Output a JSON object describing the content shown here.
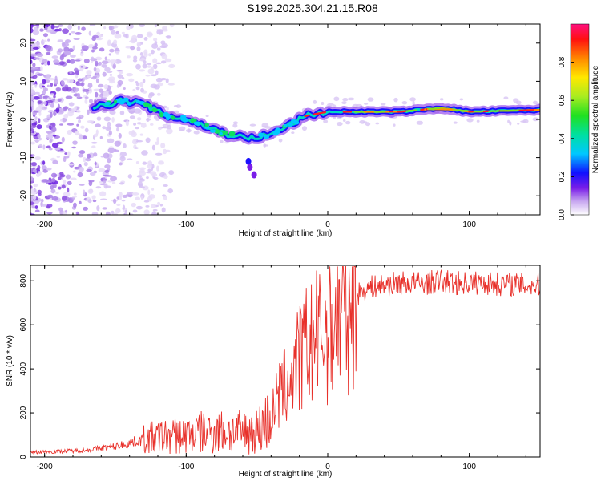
{
  "title": "S199.2025.304.21.15.R08",
  "chart_data": [
    {
      "type": "heatmap",
      "xlabel": "Height of straight line (km)",
      "ylabel": "Frequency (Hz)",
      "xlim": [
        -210,
        150
      ],
      "ylim": [
        -25,
        25
      ],
      "xticks": [
        -200,
        -100,
        0,
        100
      ],
      "yticks": [
        -20,
        -10,
        0,
        10,
        20
      ],
      "colorbar": {
        "label": "Normalized spectral amplitude",
        "range": [
          0,
          1
        ],
        "ticks": [
          0.0,
          0.2,
          0.4,
          0.6,
          0.8
        ]
      },
      "ridge": {
        "name": "signal frequency track",
        "points": [
          [
            -165,
            3
          ],
          [
            -145,
            5
          ],
          [
            -130,
            4
          ],
          [
            -115,
            1
          ],
          [
            -100,
            0
          ],
          [
            -85,
            -2
          ],
          [
            -70,
            -4
          ],
          [
            -55,
            -5
          ],
          [
            -40,
            -4
          ],
          [
            -25,
            -1
          ],
          [
            -15,
            1
          ],
          [
            0,
            2
          ],
          [
            20,
            2
          ],
          [
            50,
            2
          ],
          [
            80,
            3
          ],
          [
            100,
            2
          ],
          [
            150,
            2.5
          ]
        ]
      }
    },
    {
      "type": "line",
      "xlabel": "Height of straight line (km)",
      "ylabel": "SNR (10 * v/v)",
      "xlim": [
        -210,
        150
      ],
      "ylim": [
        0,
        870
      ],
      "xticks": [
        -200,
        -100,
        0,
        100
      ],
      "yticks": [
        0,
        200,
        400,
        600,
        800
      ],
      "series": [
        {
          "name": "SNR",
          "color": "#e8302a",
          "x": [
            -210,
            -190,
            -170,
            -150,
            -130,
            -120,
            -110,
            -100,
            -90,
            -80,
            -70,
            -60,
            -50,
            -40,
            -35,
            -30,
            -25,
            -20,
            -15,
            -10,
            -5,
            0,
            5,
            10,
            15,
            20,
            25,
            30,
            40,
            50,
            60,
            70,
            80,
            90,
            100,
            110,
            120,
            130,
            140,
            150
          ],
          "values": [
            22,
            25,
            32,
            48,
            80,
            88,
            95,
            100,
            110,
            115,
            115,
            112,
            120,
            180,
            270,
            320,
            380,
            440,
            500,
            520,
            550,
            580,
            620,
            660,
            700,
            730,
            760,
            770,
            780,
            790,
            790,
            790,
            800,
            790,
            790,
            790,
            785,
            785,
            780,
            780
          ]
        }
      ]
    }
  ]
}
